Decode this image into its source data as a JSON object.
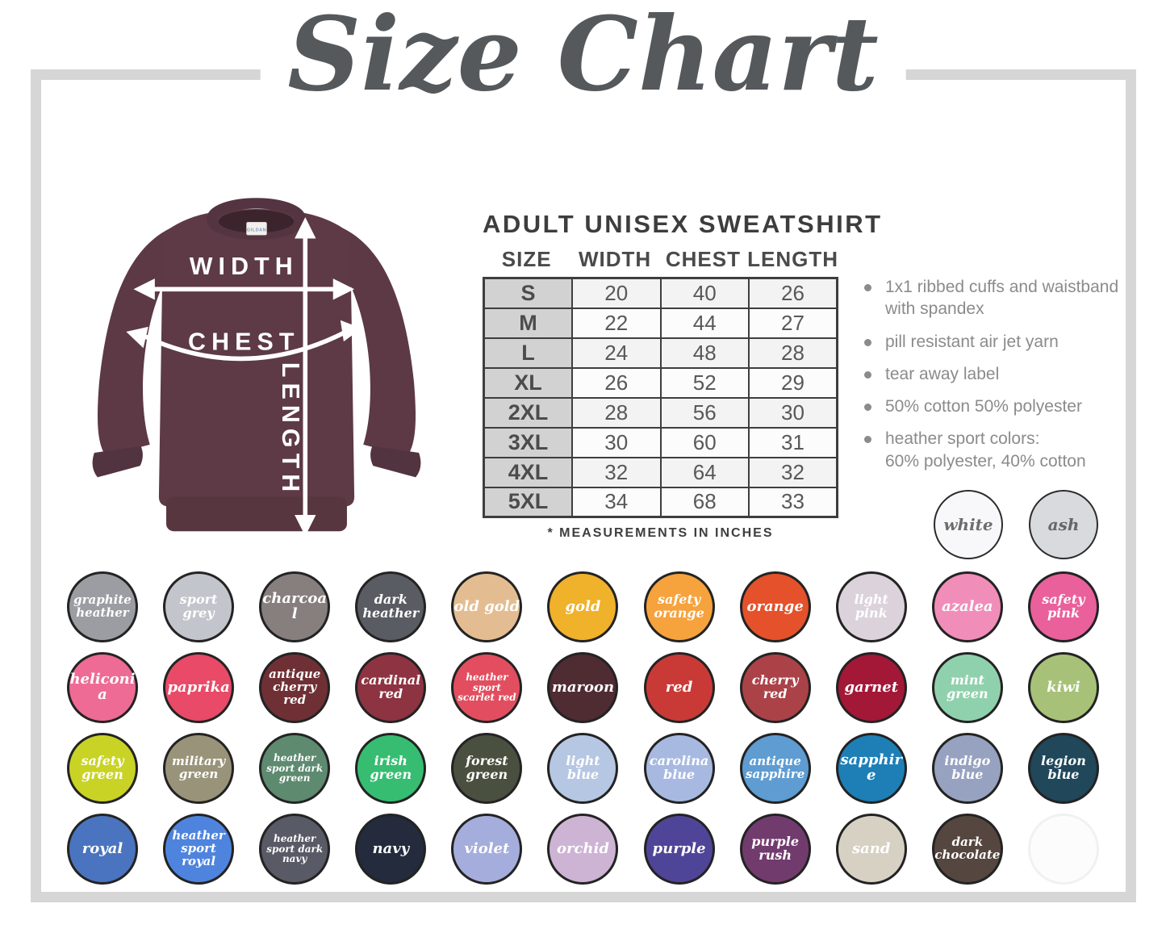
{
  "title": "Size Chart",
  "product": {
    "heading": "ADULT UNISEX SWEATSHIRT",
    "table": {
      "columns": [
        "SIZE",
        "WIDTH",
        "CHEST",
        "LENGTH"
      ],
      "rows": [
        [
          "S",
          "20",
          "40",
          "26"
        ],
        [
          "M",
          "22",
          "44",
          "27"
        ],
        [
          "L",
          "24",
          "48",
          "28"
        ],
        [
          "XL",
          "26",
          "52",
          "29"
        ],
        [
          "2XL",
          "28",
          "56",
          "30"
        ],
        [
          "3XL",
          "30",
          "60",
          "31"
        ],
        [
          "4XL",
          "32",
          "64",
          "32"
        ],
        [
          "5XL",
          "34",
          "68",
          "33"
        ]
      ],
      "footnote": "* MEASUREMENTS IN INCHES"
    },
    "features": [
      "1x1 ribbed cuffs and waistband with spandex",
      "pill resistant air jet yarn",
      "tear away label",
      "50% cotton 50% polyester",
      "heather sport colors:\n60% polyester, 40% cotton"
    ]
  },
  "diagram": {
    "shirt_color": "#5d3a45",
    "labels": {
      "width": "WIDTH",
      "chest": "CHEST",
      "length": "LENGTH"
    },
    "tag_text": "GILDAN"
  },
  "swatches": {
    "standalone": [
      {
        "name": "white",
        "color": "#f8f8fa",
        "text": "#6d6d6d"
      },
      {
        "name": "ash",
        "color": "#d8dade",
        "text": "#63666a"
      }
    ],
    "rows": [
      [
        {
          "name": "graphite heather",
          "color": "#9c9da2"
        },
        {
          "name": "sport grey",
          "color": "#c2c5cb"
        },
        {
          "name": "charcoal",
          "color": "#867f7e"
        },
        {
          "name": "dark heather",
          "color": "#5a5c63"
        },
        {
          "name": "old gold",
          "color": "#e3bd91"
        },
        {
          "name": "gold",
          "color": "#f0b12b"
        },
        {
          "name": "safety orange",
          "color": "#f6a23d"
        },
        {
          "name": "orange",
          "color": "#e5512a"
        },
        {
          "name": "light pink",
          "color": "#dbd2dc"
        },
        {
          "name": "azalea",
          "color": "#f18db9"
        },
        {
          "name": "safety pink",
          "color": "#e9609b"
        }
      ],
      [
        {
          "name": "heliconia",
          "color": "#ee6b95"
        },
        {
          "name": "paprika",
          "color": "#e84a67"
        },
        {
          "name": "antique cherry red",
          "color": "#6f3035"
        },
        {
          "name": "cardinal red",
          "color": "#8e3342"
        },
        {
          "name": "heather sport scarlet red",
          "color": "#e24e5f"
        },
        {
          "name": "maroon",
          "color": "#4f2b32"
        },
        {
          "name": "red",
          "color": "#c93a37"
        },
        {
          "name": "cherry red",
          "color": "#ab4248"
        },
        {
          "name": "garnet",
          "color": "#a21836"
        },
        {
          "name": "mint green",
          "color": "#90d1ad"
        },
        {
          "name": "kiwi",
          "color": "#a7c278"
        }
      ],
      [
        {
          "name": "safety green",
          "color": "#c9d325"
        },
        {
          "name": "military green",
          "color": "#99937a"
        },
        {
          "name": "heather sport dark green",
          "color": "#5e8a70"
        },
        {
          "name": "irish green",
          "color": "#36bd72"
        },
        {
          "name": "forest green",
          "color": "#49503f"
        },
        {
          "name": "light blue",
          "color": "#b5c7e2"
        },
        {
          "name": "carolina blue",
          "color": "#a7b9e1"
        },
        {
          "name": "antique sapphire",
          "color": "#5e9cd2"
        },
        {
          "name": "sapphire",
          "color": "#1e7fb7"
        },
        {
          "name": "indigo blue",
          "color": "#97a2c0"
        },
        {
          "name": "legion blue",
          "color": "#20475a"
        }
      ],
      [
        {
          "name": "royal",
          "color": "#4a74bf"
        },
        {
          "name": "heather sport royal",
          "color": "#4e84de"
        },
        {
          "name": "heather sport dark navy",
          "color": "#585a65"
        },
        {
          "name": "navy",
          "color": "#232b3d"
        },
        {
          "name": "violet",
          "color": "#a5addc"
        },
        {
          "name": "orchid",
          "color": "#cdb3d4"
        },
        {
          "name": "purple",
          "color": "#4f4598"
        },
        {
          "name": "purple rush",
          "color": "#723b6e"
        },
        {
          "name": "sand",
          "color": "#d7d1c3"
        },
        {
          "name": "dark chocolate",
          "color": "#564640"
        },
        {
          "name": "",
          "color": "#fdfcfc"
        }
      ]
    ]
  }
}
